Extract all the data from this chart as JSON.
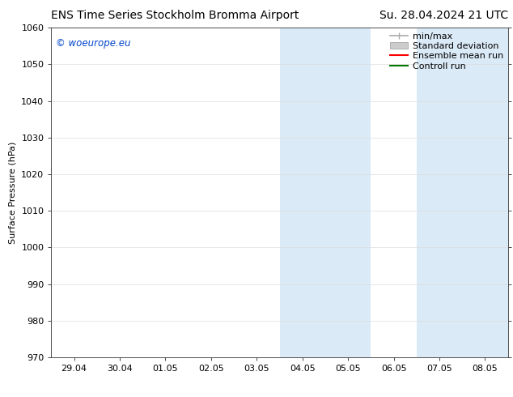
{
  "title_left": "ENS Time Series Stockholm Bromma Airport",
  "title_right": "Su. 28.04.2024 21 UTC",
  "ylabel": "Surface Pressure (hPa)",
  "ylim": [
    970,
    1060
  ],
  "yticks": [
    970,
    980,
    990,
    1000,
    1010,
    1020,
    1030,
    1040,
    1050,
    1060
  ],
  "xtick_labels": [
    "29.04",
    "30.04",
    "01.05",
    "02.05",
    "03.05",
    "04.05",
    "05.05",
    "06.05",
    "07.05",
    "08.05"
  ],
  "xtick_positions": [
    0,
    1,
    2,
    3,
    4,
    5,
    6,
    7,
    8,
    9
  ],
  "xlim": [
    -0.5,
    9.5
  ],
  "shade_regions": [
    {
      "x_start": 4.5,
      "x_end": 6.5
    },
    {
      "x_start": 7.5,
      "x_end": 9.5
    }
  ],
  "shade_color": "#dbeaf7",
  "watermark_text": "© woeurope.eu",
  "watermark_color": "#0044cc",
  "bg_color": "#ffffff",
  "legend_entries": [
    {
      "label": "min/max",
      "color": "#aaaaaa",
      "type": "line_with_cap"
    },
    {
      "label": "Standard deviation",
      "color": "#cccccc",
      "type": "box"
    },
    {
      "label": "Ensemble mean run",
      "color": "#ff0000",
      "type": "line"
    },
    {
      "label": "Controll run",
      "color": "#007700",
      "type": "line"
    }
  ],
  "grid_color": "#dddddd",
  "title_fontsize": 10,
  "tick_label_fontsize": 8,
  "ylabel_fontsize": 8,
  "legend_fontsize": 8
}
